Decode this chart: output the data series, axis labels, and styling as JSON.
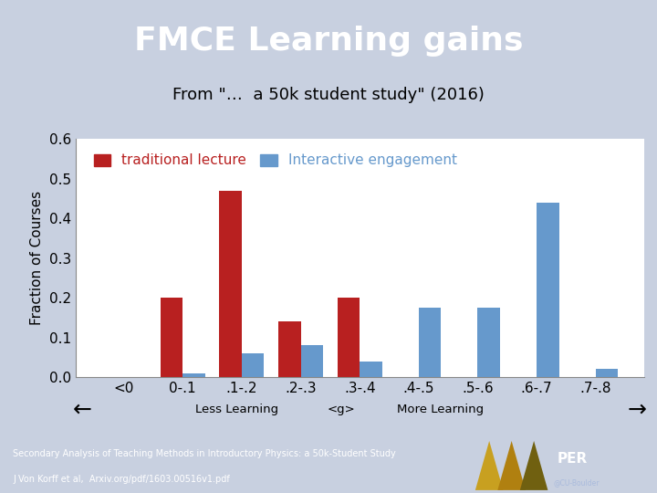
{
  "title": "FMCE Learning gains",
  "subtitle": "From \"…  a 50k student study\" (2016)",
  "ylabel": "Fraction of Courses",
  "title_bg_color": "#3535A0",
  "title_text_color": "#FFFFFF",
  "bg_color": "#C8D0E0",
  "plot_bg_color": "#FFFFFF",
  "categories": [
    "<0",
    "0-.1",
    ".1-.2",
    ".2-.3",
    ".3-.4",
    ".4-.5",
    ".5-.6",
    ".6-.7",
    ".7-.8"
  ],
  "trad_values": [
    0.0,
    0.2,
    0.47,
    0.14,
    0.2,
    0.0,
    0.0,
    0.0,
    0.0
  ],
  "inter_values": [
    0.0,
    0.01,
    0.06,
    0.08,
    0.04,
    0.175,
    0.175,
    0.44,
    0.02
  ],
  "trad_color": "#B82020",
  "inter_color": "#6699CC",
  "legend_trad": "traditional lecture",
  "legend_inter": "Interactive engagement",
  "ylim": [
    0.0,
    0.6
  ],
  "yticks": [
    0.0,
    0.1,
    0.2,
    0.3,
    0.4,
    0.5,
    0.6
  ],
  "footnote_line1": "Secondary Analysis of Teaching Methods in Introductory Physics: a 50k-Student Study",
  "footnote_line2": "J Von Korff et al,  Arxiv.org/pdf/1603.00516v1.pdf",
  "footer_bg_color": "#1E2E80",
  "footer_text_color": "#FFFFFF",
  "xlabel_center": "<g>",
  "xlabel_left": "Less Learning",
  "xlabel_right": "More Learning",
  "tri_colors": [
    "#C8A020",
    "#B08010",
    "#706010"
  ],
  "bar_width": 0.38
}
